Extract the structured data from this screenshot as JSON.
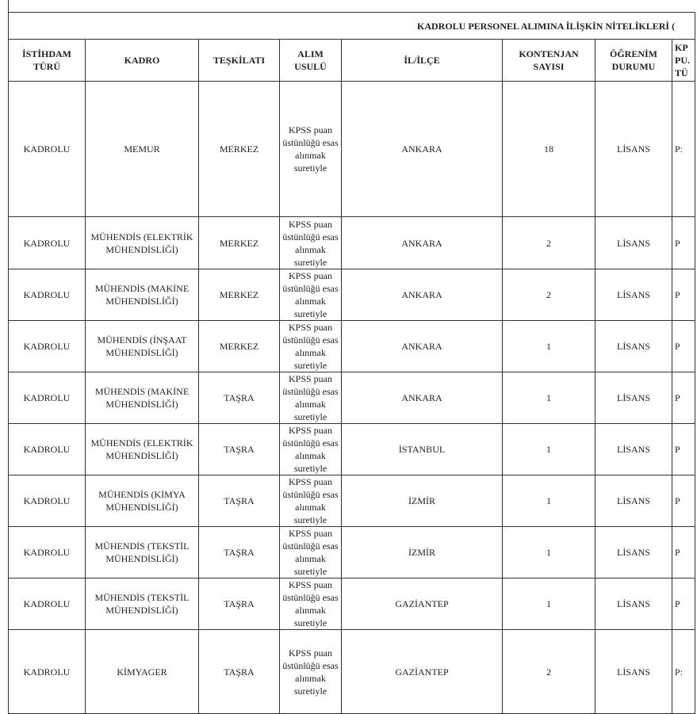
{
  "title": "KADROLU PERSONEL ALIMINA İLİŞKİN NİTELİKLERİ (",
  "headers": [
    "İSTİHDAM TÜRÜ",
    "KADRO",
    "TEŞKİLATI",
    "ALIM USULÜ",
    "İL/İLÇE",
    "KONTENJAN SAYISI",
    "ÖĞRENİM DURUMU",
    "KP PU. TÜ"
  ],
  "rows": [
    [
      "KADROLU",
      "MEMUR",
      "MERKEZ",
      "KPSS puan üstünlüğü esas alınmak suretiyle",
      "ANKARA",
      "18",
      "LİSANS",
      "P:"
    ],
    [
      "KADROLU",
      "MÜHENDİS (ELEKTRİK MÜHENDİSLİĞİ)",
      "MERKEZ",
      "KPSS puan üstünlüğü esas alınmak suretiyle",
      "ANKARA",
      "2",
      "LİSANS",
      "P"
    ],
    [
      "KADROLU",
      "MÜHENDİS (MAKİNE MÜHENDİSLİĞİ)",
      "MERKEZ",
      "KPSS puan üstünlüğü esas alınmak suretiyle",
      "ANKARA",
      "2",
      "LİSANS",
      "P"
    ],
    [
      "KADROLU",
      "MÜHENDİS (İNŞAAT MÜHENDİSLİĞİ)",
      "MERKEZ",
      "KPSS puan üstünlüğü esas alınmak suretiyle",
      "ANKARA",
      "1",
      "LİSANS",
      "P"
    ],
    [
      "KADROLU",
      "MÜHENDİS (MAKİNE MÜHENDİSLİĞİ)",
      "TAŞRA",
      "KPSS puan üstünlüğü esas alınmak suretiyle",
      "ANKARA",
      "1",
      "LİSANS",
      "P"
    ],
    [
      "KADROLU",
      "MÜHENDİS (ELEKTRİK MÜHENDİSLİĞİ)",
      "TAŞRA",
      "KPSS puan üstünlüğü esas alınmak suretiyle",
      "İSTANBUL",
      "1",
      "LİSANS",
      "P"
    ],
    [
      "KADROLU",
      "MÜHENDİS (KİMYA MÜHENDİSLİĞİ)",
      "TAŞRA",
      "KPSS puan üstünlüğü esas alınmak suretiyle",
      "İZMİR",
      "1",
      "LİSANS",
      "P"
    ],
    [
      "KADROLU",
      "MÜHENDİS (TEKSTİL MÜHENDİSLİĞİ)",
      "TAŞRA",
      "KPSS puan üstünlüğü esas alınmak suretiyle",
      "İZMİR",
      "1",
      "LİSANS",
      "P"
    ],
    [
      "KADROLU",
      "MÜHENDİS (TEKSTİL MÜHENDİSLİĞİ)",
      "TAŞRA",
      "KPSS puan üstünlüğü esas alınmak suretiyle",
      "GAZİANTEP",
      "1",
      "LİSANS",
      "P"
    ],
    [
      "KADROLU",
      "KİMYAGER",
      "TAŞRA",
      "KPSS puan üstünlüğü esas alınmak suretiyle",
      "GAZİANTEP",
      "2",
      "LİSANS",
      "P:"
    ]
  ]
}
